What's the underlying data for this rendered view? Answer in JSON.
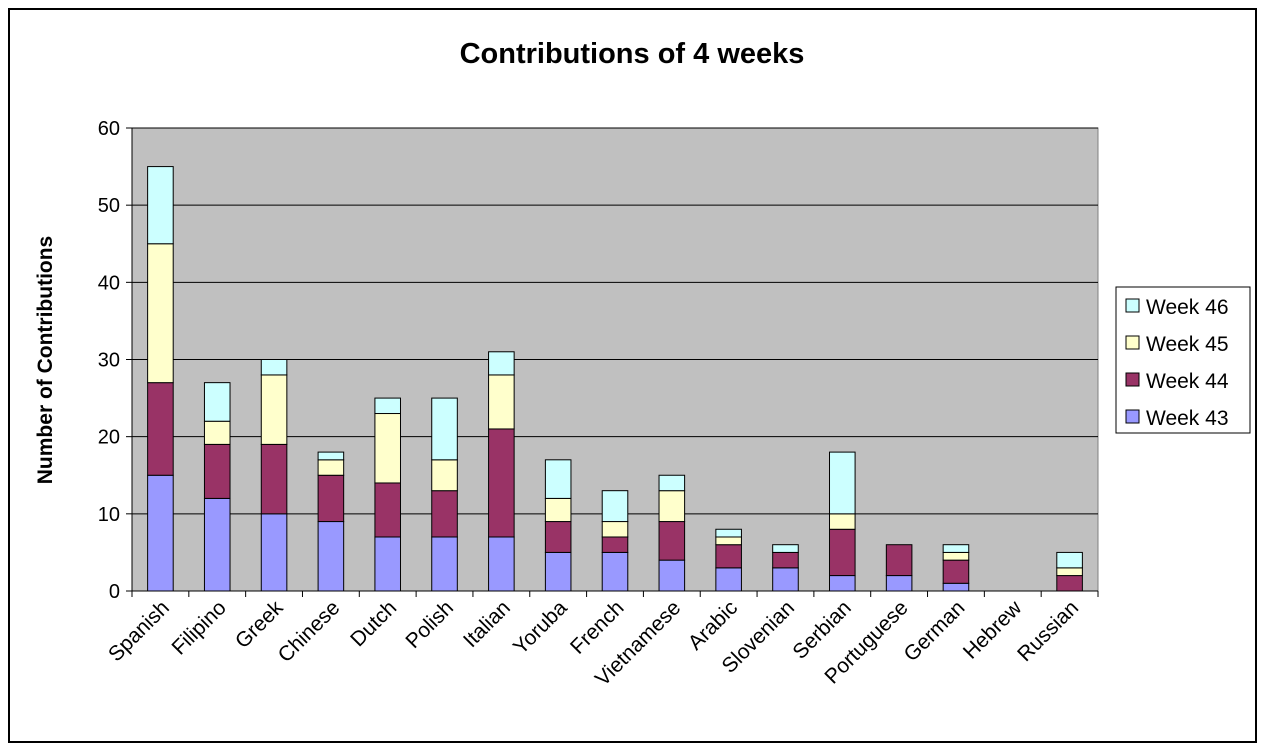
{
  "chart_data": {
    "type": "bar",
    "stacked": true,
    "title": "Contributions of 4 weeks",
    "xlabel": "",
    "ylabel": "Number of Contributions",
    "ylim": [
      0,
      60
    ],
    "yticks": [
      0,
      10,
      20,
      30,
      40,
      50,
      60
    ],
    "grid": true,
    "legend_position": "right",
    "plot_background": "#C0C0C0",
    "categories": [
      "Spanish",
      "Filipino",
      "Greek",
      "Chinese",
      "Dutch",
      "Polish",
      "Italian",
      "Yoruba",
      "French",
      "Vietnamese",
      "Arabic",
      "Slovenian",
      "Serbian",
      "Portuguese",
      "German",
      "Hebrew",
      "Russian"
    ],
    "series": [
      {
        "name": "Week 43",
        "color": "#9999FF",
        "values": [
          15,
          12,
          10,
          9,
          7,
          7,
          7,
          5,
          5,
          4,
          3,
          3,
          2,
          2,
          1,
          0,
          0
        ]
      },
      {
        "name": "Week 44",
        "color": "#993366",
        "values": [
          12,
          7,
          9,
          6,
          7,
          6,
          14,
          4,
          2,
          5,
          3,
          2,
          6,
          4,
          3,
          0,
          2
        ]
      },
      {
        "name": "Week 45",
        "color": "#FFFFCC",
        "values": [
          18,
          3,
          9,
          2,
          9,
          4,
          7,
          3,
          2,
          4,
          1,
          0,
          2,
          0,
          1,
          0,
          1
        ]
      },
      {
        "name": "Week 46",
        "color": "#CCFFFF",
        "values": [
          10,
          5,
          2,
          1,
          2,
          8,
          3,
          5,
          4,
          2,
          1,
          1,
          8,
          0,
          1,
          0,
          2
        ]
      }
    ]
  }
}
